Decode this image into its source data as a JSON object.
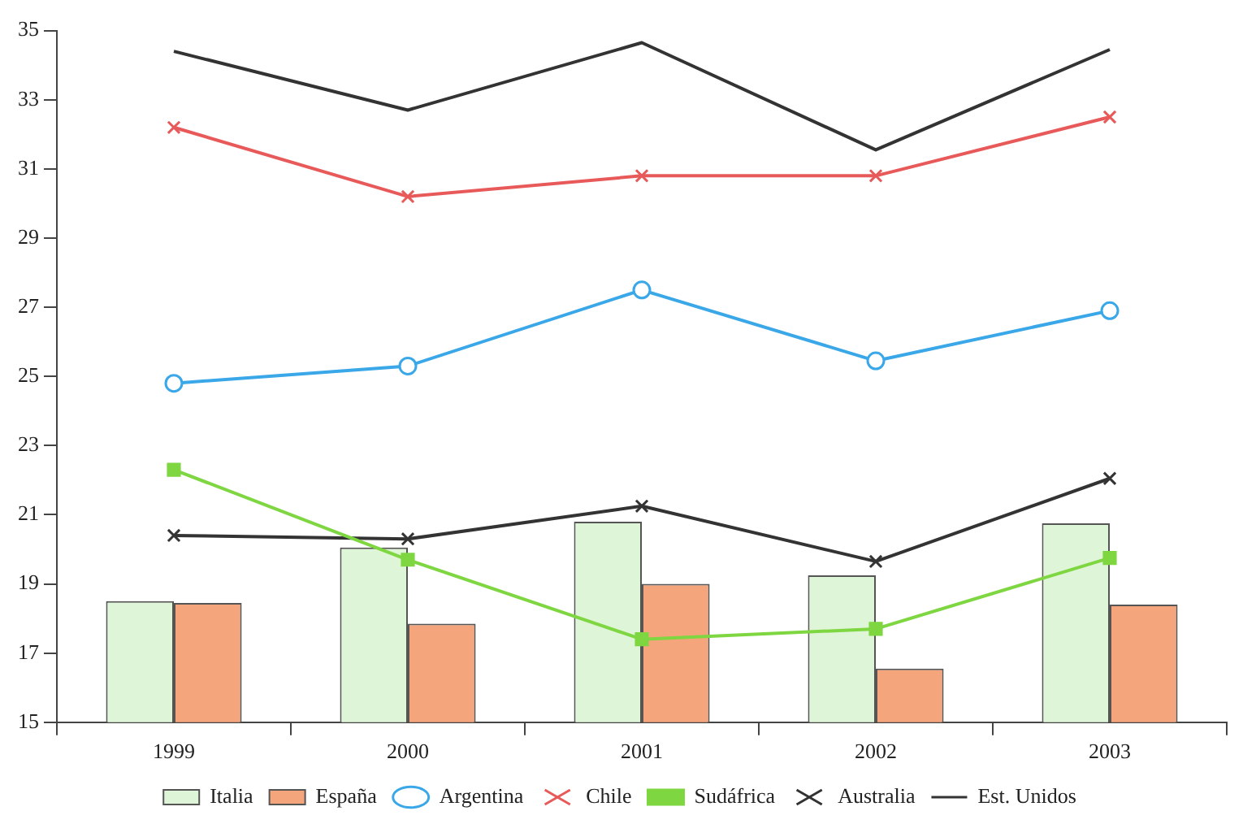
{
  "chart_data": {
    "type": "bar",
    "categories": [
      "1999",
      "2000",
      "2001",
      "2002",
      "2003"
    ],
    "series": [
      {
        "name": "Italia",
        "color": "#dff5d8",
        "values": [
          18.5,
          20.05,
          20.8,
          19.25,
          20.75
        ]
      },
      {
        "name": "España",
        "color": "#f4a57c",
        "values": [
          18.45,
          17.85,
          19.0,
          16.55,
          18.4
        ]
      },
      {
        "name": "Argentina",
        "type": "line",
        "marker": "circle",
        "color": "#3aa7e8",
        "values": [
          24.8,
          25.3,
          27.5,
          25.45,
          26.9
        ]
      },
      {
        "name": "Chile",
        "type": "line",
        "marker": "cross",
        "color": "#e85a5a",
        "values": [
          32.2,
          30.2,
          30.8,
          30.8,
          32.5
        ]
      },
      {
        "name": "Sudáfrica",
        "type": "line",
        "marker": "square",
        "color": "#7ed640",
        "values": [
          22.3,
          19.7,
          17.4,
          17.7,
          19.75
        ]
      },
      {
        "name": "Australia",
        "type": "line",
        "marker": "cross",
        "color": "#333333",
        "values": [
          20.4,
          20.3,
          21.25,
          19.65,
          22.05
        ]
      },
      {
        "name": "Est. Unidos",
        "type": "line",
        "marker": "none",
        "color": "#333333",
        "values": [
          34.4,
          32.7,
          34.65,
          31.55,
          34.45
        ]
      }
    ],
    "ylim": [
      15,
      35
    ],
    "yticks": [
      15,
      17,
      19,
      21,
      23,
      25,
      27,
      29,
      31,
      33,
      35
    ],
    "grid": false,
    "legend": "bottom"
  }
}
